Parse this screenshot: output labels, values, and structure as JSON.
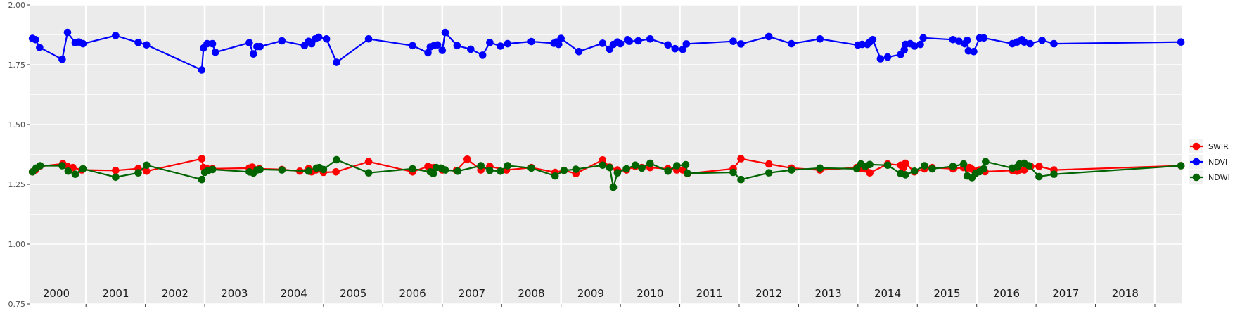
{
  "chart_data": {
    "type": "line",
    "title": "",
    "xlabel": "",
    "ylabel": "",
    "ylim": [
      0.75,
      2.0
    ],
    "xlim": [
      1999.55,
      2018.95
    ],
    "yticks": [
      0.75,
      1.0,
      1.25,
      1.5,
      1.75,
      2.0
    ],
    "ytick_labels": [
      "0.75",
      "1.00",
      "1.25",
      "1.50",
      "1.75",
      "2.00"
    ],
    "years": [
      "2000",
      "2001",
      "2002",
      "2003",
      "2004",
      "2005",
      "2006",
      "2007",
      "2008",
      "2009",
      "2010",
      "2011",
      "2012",
      "2013",
      "2014",
      "2015",
      "2016",
      "2017",
      "2018"
    ],
    "grid": true,
    "legend_position": "right",
    "series": [
      {
        "name": "SWIR",
        "color": "#ff0000",
        "x": [
          1999.6,
          1999.65,
          1999.72,
          2000.11,
          2000.19,
          2000.28,
          2000.43,
          2001.0,
          2001.38,
          2001.52,
          2002.45,
          2002.48,
          2002.54,
          2002.63,
          2003.25,
          2003.3,
          2003.36,
          2003.42,
          2003.8,
          2004.1,
          2004.25,
          2004.3,
          2004.37,
          2004.5,
          2004.71,
          2005.26,
          2006.0,
          2006.26,
          2006.3,
          2006.36,
          2006.5,
          2006.74,
          2006.92,
          2007.15,
          2007.3,
          2007.58,
          2008.0,
          2008.4,
          2008.55,
          2008.75,
          2009.2,
          2009.32,
          2009.45,
          2009.6,
          2009.75,
          2009.86,
          2010.0,
          2010.3,
          2010.45,
          2010.55,
          2010.63,
          2011.4,
          2011.53,
          2012.0,
          2012.38,
          2012.86,
          2013.48,
          2013.55,
          2013.62,
          2013.7,
          2014.0,
          2014.22,
          2014.26,
          2014.3,
          2014.45,
          2014.62,
          2014.75,
          2015.1,
          2015.28,
          2015.34,
          2015.38,
          2015.42,
          2015.54,
          2015.56,
          2015.64,
          2016.1,
          2016.18,
          2016.22,
          2016.3,
          2016.41,
          2016.55,
          2016.8,
          2018.94
        ],
        "values": [
          1.302,
          1.31,
          1.325,
          1.336,
          1.325,
          1.32,
          1.31,
          1.308,
          1.316,
          1.305,
          1.357,
          1.32,
          1.315,
          1.315,
          1.318,
          1.322,
          1.31,
          1.315,
          1.312,
          1.305,
          1.316,
          1.302,
          1.31,
          1.3,
          1.302,
          1.345,
          1.302,
          1.325,
          1.32,
          1.32,
          1.31,
          1.308,
          1.355,
          1.31,
          1.325,
          1.31,
          1.32,
          1.3,
          1.308,
          1.295,
          1.352,
          1.322,
          1.31,
          1.31,
          1.325,
          1.32,
          1.32,
          1.315,
          1.31,
          1.31,
          1.295,
          1.315,
          1.357,
          1.335,
          1.318,
          1.31,
          1.32,
          1.318,
          1.315,
          1.298,
          1.335,
          1.33,
          1.318,
          1.338,
          1.302,
          1.315,
          1.32,
          1.315,
          1.32,
          1.318,
          1.32,
          1.313,
          1.31,
          1.31,
          1.303,
          1.308,
          1.305,
          1.31,
          1.31,
          1.325,
          1.325,
          1.31,
          1.328
        ]
      },
      {
        "name": "NDVI",
        "color": "#0000ff",
        "x": [
          1999.6,
          1999.65,
          1999.72,
          2000.1,
          2000.19,
          2000.32,
          2000.38,
          2000.45,
          2001.0,
          2001.38,
          2001.52,
          2002.45,
          2002.48,
          2002.54,
          2002.63,
          2002.68,
          2003.25,
          2003.32,
          2003.38,
          2003.43,
          2003.8,
          2004.18,
          2004.25,
          2004.3,
          2004.36,
          2004.42,
          2004.55,
          2004.72,
          2005.26,
          2006.0,
          2006.26,
          2006.3,
          2006.36,
          2006.42,
          2006.5,
          2006.55,
          2006.75,
          2006.98,
          2007.18,
          2007.3,
          2007.48,
          2007.6,
          2008.0,
          2008.38,
          2008.42,
          2008.46,
          2008.5,
          2008.8,
          2009.2,
          2009.32,
          2009.38,
          2009.45,
          2009.5,
          2009.62,
          2009.65,
          2009.8,
          2010.0,
          2010.3,
          2010.42,
          2010.55,
          2010.61,
          2011.4,
          2011.53,
          2012.0,
          2012.38,
          2012.86,
          2013.5,
          2013.57,
          2013.66,
          2013.7,
          2013.75,
          2013.88,
          2014.0,
          2014.22,
          2014.28,
          2014.3,
          2014.38,
          2014.45,
          2014.55,
          2014.6,
          2015.1,
          2015.2,
          2015.3,
          2015.34,
          2015.36,
          2015.45,
          2015.55,
          2015.62,
          2016.1,
          2016.18,
          2016.26,
          2016.3,
          2016.4,
          2016.6,
          2016.8,
          2018.94
        ],
        "values": [
          1.86,
          1.855,
          1.822,
          1.773,
          1.885,
          1.842,
          1.845,
          1.838,
          1.872,
          1.843,
          1.833,
          1.728,
          1.82,
          1.838,
          1.838,
          1.802,
          1.842,
          1.795,
          1.826,
          1.826,
          1.85,
          1.83,
          1.848,
          1.838,
          1.858,
          1.865,
          1.858,
          1.76,
          1.858,
          1.83,
          1.8,
          1.825,
          1.83,
          1.833,
          1.81,
          1.885,
          1.83,
          1.815,
          1.79,
          1.843,
          1.828,
          1.838,
          1.847,
          1.84,
          1.845,
          1.835,
          1.86,
          1.805,
          1.84,
          1.815,
          1.835,
          1.845,
          1.838,
          1.855,
          1.848,
          1.85,
          1.858,
          1.833,
          1.817,
          1.814,
          1.837,
          1.848,
          1.837,
          1.868,
          1.838,
          1.858,
          1.832,
          1.835,
          1.835,
          1.845,
          1.855,
          1.775,
          1.782,
          1.793,
          1.812,
          1.835,
          1.838,
          1.828,
          1.835,
          1.862,
          1.855,
          1.848,
          1.838,
          1.852,
          1.808,
          1.805,
          1.862,
          1.862,
          1.838,
          1.845,
          1.855,
          1.845,
          1.838,
          1.852,
          1.838,
          1.845
        ],
        "comment": ""
      },
      {
        "name": "NDWI",
        "color": "#006400",
        "x": [
          1999.6,
          1999.66,
          1999.73,
          2000.1,
          2000.2,
          2000.32,
          2000.45,
          2001.0,
          2001.38,
          2001.52,
          2002.45,
          2002.5,
          2002.56,
          2002.63,
          2003.25,
          2003.32,
          2003.38,
          2003.43,
          2003.8,
          2004.25,
          2004.38,
          2004.43,
          2004.5,
          2004.72,
          2005.26,
          2006.0,
          2006.3,
          2006.35,
          2006.4,
          2006.48,
          2006.55,
          2006.76,
          2007.15,
          2007.3,
          2007.48,
          2007.6,
          2008.0,
          2008.4,
          2008.55,
          2008.75,
          2009.2,
          2009.32,
          2009.38,
          2009.45,
          2009.6,
          2009.75,
          2009.86,
          2010.0,
          2010.3,
          2010.45,
          2010.6,
          2010.63,
          2011.4,
          2011.53,
          2012.0,
          2012.38,
          2012.86,
          2013.48,
          2013.55,
          2013.62,
          2013.7,
          2014.0,
          2014.22,
          2014.3,
          2014.45,
          2014.62,
          2014.75,
          2015.1,
          2015.28,
          2015.34,
          2015.42,
          2015.48,
          2015.55,
          2015.62,
          2015.65,
          2016.1,
          2016.18,
          2016.22,
          2016.3,
          2016.38,
          2016.55,
          2016.8,
          2018.94
        ],
        "values": [
          1.302,
          1.318,
          1.328,
          1.328,
          1.305,
          1.292,
          1.315,
          1.28,
          1.298,
          1.33,
          1.27,
          1.3,
          1.308,
          1.312,
          1.302,
          1.297,
          1.31,
          1.312,
          1.31,
          1.305,
          1.318,
          1.32,
          1.312,
          1.353,
          1.298,
          1.315,
          1.302,
          1.295,
          1.32,
          1.318,
          1.31,
          1.305,
          1.328,
          1.308,
          1.305,
          1.328,
          1.318,
          1.285,
          1.308,
          1.313,
          1.33,
          1.32,
          1.238,
          1.298,
          1.315,
          1.33,
          1.318,
          1.338,
          1.305,
          1.328,
          1.332,
          1.296,
          1.3,
          1.27,
          1.298,
          1.31,
          1.318,
          1.315,
          1.335,
          1.325,
          1.333,
          1.33,
          1.295,
          1.29,
          1.305,
          1.328,
          1.315,
          1.325,
          1.335,
          1.285,
          1.278,
          1.295,
          1.303,
          1.315,
          1.345,
          1.318,
          1.322,
          1.335,
          1.338,
          1.328,
          1.282,
          1.292,
          1.328
        ]
      }
    ]
  }
}
